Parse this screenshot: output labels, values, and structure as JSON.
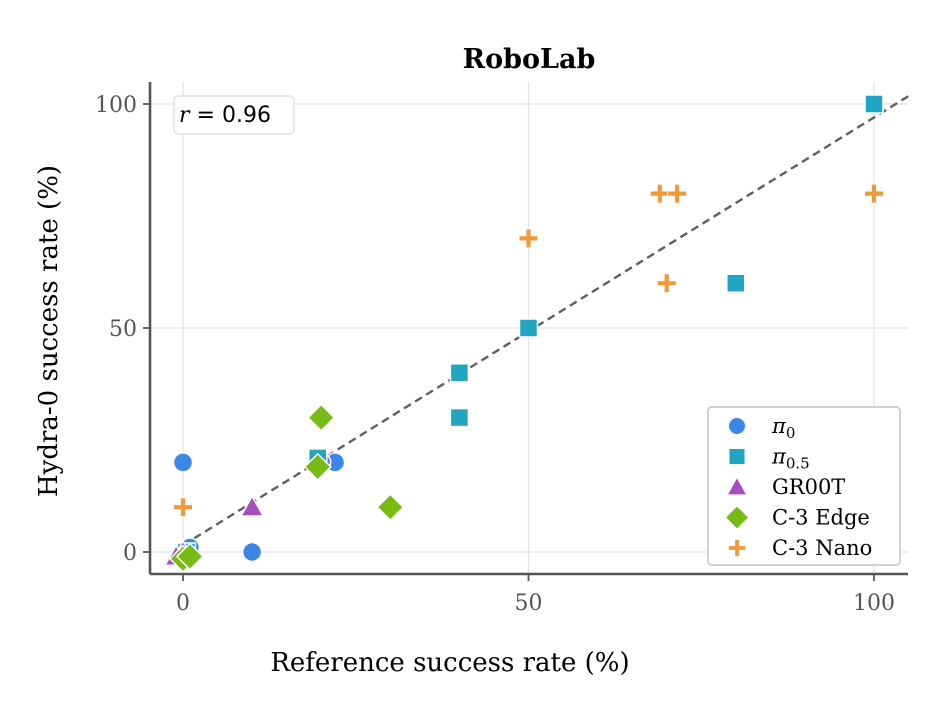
{
  "chart_data": {
    "type": "scatter",
    "title": "RoboLab",
    "xlabel": "Reference success rate (%)",
    "ylabel": "Hydra-0 success rate (%)",
    "xlim": [
      -5,
      105
    ],
    "ylim": [
      -5,
      105
    ],
    "xticks": [
      0,
      50,
      100
    ],
    "yticks": [
      0,
      50,
      100
    ],
    "grid": true,
    "legend_position": "lower-right",
    "annotation": {
      "symbol": "r",
      "text": " = 0.96"
    },
    "trend_line": {
      "style": "dashed",
      "color": "#606060",
      "slope": 0.955,
      "intercept": 1.5
    },
    "series": [
      {
        "name": "π",
        "subscript": "0",
        "marker": "circle",
        "color": "#3B86E6",
        "points": [
          [
            0,
            20
          ],
          [
            0,
            0
          ],
          [
            1,
            1
          ],
          [
            10,
            0
          ],
          [
            22,
            20
          ],
          [
            20,
            20
          ]
        ]
      },
      {
        "name": "π",
        "subscript": "0.5",
        "marker": "square",
        "color": "#22A5C1",
        "points": [
          [
            100,
            100
          ],
          [
            80,
            60
          ],
          [
            50,
            50
          ],
          [
            40,
            40
          ],
          [
            40,
            30
          ],
          [
            19.5,
            21
          ],
          [
            0.5,
            0
          ]
        ]
      },
      {
        "name": "GR00T",
        "marker": "triangle",
        "color": "#A64DC0",
        "points": [
          [
            10,
            10
          ],
          [
            -1,
            -1
          ],
          [
            0,
            0
          ]
        ]
      },
      {
        "name": "C-3 Edge",
        "marker": "diamond",
        "color": "#77BB14",
        "points": [
          [
            20,
            30
          ],
          [
            19.5,
            19
          ],
          [
            30,
            10
          ],
          [
            0,
            -1.5
          ],
          [
            1,
            -1
          ]
        ]
      },
      {
        "name": "C-3 Nano",
        "marker": "plus",
        "color": "#F09A3A",
        "points": [
          [
            0,
            10
          ],
          [
            50,
            70
          ],
          [
            69,
            80
          ],
          [
            71.5,
            80
          ],
          [
            100,
            80
          ],
          [
            70,
            60
          ]
        ]
      }
    ]
  }
}
